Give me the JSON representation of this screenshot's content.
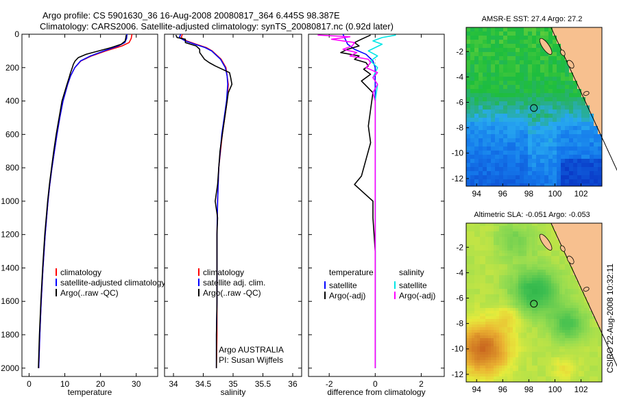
{
  "header": {
    "title_line1": "Argo profile: CS 5901630_36 16-Aug-2008 20080817_364 6.445S 98.387E",
    "title_line2": "Climatology: CARS2006. Satellite-adjusted climatology: synTS_20080817.nc (0.92d later)"
  },
  "footer_stamp": "CSIRO 22-Aug-2008 10:32:11",
  "colors": {
    "climatology": "#ff0000",
    "satellite": "#0000ff",
    "argo": "#000000",
    "sal_satellite": "#00e5e5",
    "sal_argo": "#ff00ff",
    "land": "#f7c08f"
  },
  "chart_data": [
    {
      "type": "line",
      "id": "temperature",
      "xlabel": "temperature",
      "xlim": [
        -2,
        36
      ],
      "xticks": [
        0,
        10,
        20,
        30
      ],
      "ylim": [
        0,
        2050
      ],
      "yticks": [
        0,
        200,
        400,
        600,
        800,
        1000,
        1200,
        1400,
        1600,
        1800,
        2000
      ],
      "y_reversed": true,
      "legend": [
        "climatology",
        "satellite-adjusted climatology",
        "Argo(..raw -QC)"
      ],
      "legend_colors": [
        "#ff0000",
        "#0000ff",
        "#000000"
      ],
      "series": [
        {
          "name": "climatology",
          "color": "#ff0000",
          "y": [
            0,
            25,
            50,
            70,
            100,
            130,
            160,
            200,
            250,
            300,
            400,
            500,
            600,
            700,
            800,
            900,
            1000,
            1200,
            1400,
            1600,
            1800,
            2000
          ],
          "x": [
            28.8,
            28.6,
            28.0,
            26.0,
            21.5,
            17.5,
            14.5,
            12.8,
            11.6,
            10.8,
            9.5,
            8.6,
            7.8,
            7.1,
            6.4,
            5.8,
            5.3,
            4.5,
            3.9,
            3.4,
            3.0,
            2.7
          ]
        },
        {
          "name": "satellite-adjusted climatology",
          "color": "#0000ff",
          "y": [
            0,
            25,
            50,
            70,
            100,
            130,
            160,
            200,
            250,
            300,
            400,
            500,
            600,
            700,
            800,
            900,
            1000,
            1200,
            1400,
            1600,
            1800,
            2000
          ],
          "x": [
            27.4,
            27.3,
            26.8,
            25.0,
            21.0,
            17.2,
            14.4,
            12.8,
            11.6,
            10.8,
            9.5,
            8.6,
            7.8,
            7.1,
            6.4,
            5.8,
            5.3,
            4.5,
            3.9,
            3.4,
            3.0,
            2.7
          ]
        },
        {
          "name": "Argo(..raw -QC)",
          "color": "#000000",
          "y": [
            5,
            20,
            40,
            60,
            80,
            100,
            120,
            140,
            160,
            180,
            200,
            230,
            260,
            300,
            400,
            500,
            600,
            700,
            800,
            900,
            1000,
            1200,
            1400,
            1600,
            1800,
            2000
          ],
          "x": [
            27.2,
            27.1,
            26.9,
            25.8,
            23.0,
            19.5,
            16.0,
            13.8,
            12.9,
            12.4,
            12.1,
            11.6,
            11.2,
            10.6,
            9.2,
            8.4,
            7.6,
            6.9,
            6.3,
            5.7,
            5.2,
            4.4,
            3.8,
            3.3,
            2.9,
            2.6
          ]
        }
      ]
    },
    {
      "type": "line",
      "id": "salinity",
      "xlabel": "salinity",
      "xlim": [
        33.85,
        36.15
      ],
      "xticks": [
        34,
        34.5,
        35,
        35.5,
        36
      ],
      "xtick_labels": [
        "34",
        "34.5",
        "35",
        "35.5",
        "36"
      ],
      "ylim": [
        0,
        2050
      ],
      "y_reversed": true,
      "legend": [
        "climatology",
        "satellite adj. clim.",
        "Argo(..raw -QC)"
      ],
      "legend_colors": [
        "#ff0000",
        "#0000ff",
        "#000000"
      ],
      "annotation": [
        "Argo AUSTRALIA",
        "PI: Susan Wijffels"
      ],
      "series": [
        {
          "name": "climatology",
          "color": "#ff0000",
          "y": [
            0,
            20,
            40,
            60,
            80,
            100,
            150,
            200,
            250,
            300,
            400,
            500,
            600,
            800,
            1000,
            1200,
            1400,
            1600,
            1800,
            2000
          ],
          "x": [
            34.15,
            34.13,
            34.22,
            34.38,
            34.55,
            34.65,
            34.8,
            34.88,
            34.9,
            34.92,
            34.9,
            34.86,
            34.82,
            34.76,
            34.74,
            34.73,
            34.73,
            34.73,
            34.73,
            34.72
          ]
        },
        {
          "name": "satellite adj. clim.",
          "color": "#0000ff",
          "y": [
            0,
            20,
            40,
            60,
            80,
            100,
            150,
            200,
            250,
            300,
            400,
            500,
            600,
            800,
            1000,
            1200,
            1400,
            1600,
            1800,
            2000
          ],
          "x": [
            34.12,
            34.1,
            34.2,
            34.36,
            34.53,
            34.64,
            34.79,
            34.87,
            34.9,
            34.91,
            34.89,
            34.85,
            34.81,
            34.76,
            34.74,
            34.73,
            34.73,
            34.73,
            34.72,
            34.72
          ]
        },
        {
          "name": "Argo(..raw -QC)",
          "color": "#000000",
          "y": [
            5,
            20,
            30,
            50,
            70,
            90,
            110,
            130,
            150,
            170,
            190,
            210,
            230,
            260,
            300,
            350,
            400,
            500,
            600,
            700,
            800,
            900,
            1000,
            1100,
            1200,
            1400,
            1600,
            1800,
            2000
          ],
          "x": [
            34.04,
            34.06,
            34.2,
            34.2,
            34.38,
            34.44,
            34.44,
            34.48,
            34.52,
            34.6,
            34.7,
            34.82,
            34.94,
            34.96,
            34.98,
            34.92,
            34.9,
            34.86,
            34.82,
            34.78,
            34.76,
            34.74,
            34.7,
            34.74,
            34.73,
            34.73,
            34.73,
            34.72,
            34.72
          ]
        }
      ]
    },
    {
      "type": "line",
      "id": "difference",
      "xlabel": "difference from climatology",
      "xlim": [
        -2.9,
        3.0
      ],
      "xticks": [
        -2,
        0,
        2
      ],
      "ylim": [
        0,
        2050
      ],
      "y_reversed": true,
      "legend_temperature_title": "temperature",
      "legend_temperature": [
        "satellite",
        "Argo(-adj)"
      ],
      "legend_temperature_colors": [
        "#0000ff",
        "#000000"
      ],
      "legend_salinity_title": "salinity",
      "legend_salinity": [
        "satellite",
        "Argo(-adj)"
      ],
      "legend_salinity_colors": [
        "#00e5e5",
        "#ff00ff"
      ],
      "series": [
        {
          "name": "temperature satellite",
          "color": "#0000ff",
          "y": [
            0,
            30,
            60,
            90,
            120,
            160,
            200,
            300,
            500,
            800,
            1200,
            2000
          ],
          "x": [
            -1.4,
            -1.3,
            -1.2,
            -0.9,
            -0.4,
            -0.1,
            0.0,
            0.0,
            0.0,
            0.0,
            0.0,
            0.0
          ]
        },
        {
          "name": "temperature Argo(-adj)",
          "color": "#000000",
          "y": [
            5,
            30,
            50,
            70,
            90,
            110,
            130,
            150,
            170,
            190,
            210,
            240,
            280,
            350,
            450,
            550,
            650,
            750,
            850,
            900,
            950,
            1000,
            1100,
            1300,
            1500,
            1700,
            2000
          ],
          "x": [
            -0.2,
            -0.6,
            -0.9,
            -0.7,
            -1.2,
            -1.5,
            -0.7,
            -0.9,
            -0.4,
            -0.3,
            -0.5,
            -0.2,
            -0.6,
            -0.1,
            -0.2,
            -0.3,
            -0.2,
            -0.4,
            -0.6,
            -0.9,
            -0.5,
            -0.1,
            -0.1,
            0.0,
            0.0,
            0.0,
            0.0
          ]
        },
        {
          "name": "salinity satellite",
          "color": "#00e5e5",
          "y": [
            5,
            20,
            40,
            60,
            80,
            100,
            130,
            160,
            200,
            260,
            300,
            400,
            600,
            1000,
            2000
          ],
          "x": [
            0.9,
            0.3,
            -0.1,
            0.3,
            0.0,
            -0.3,
            0.1,
            -0.2,
            0.1,
            -0.1,
            0.1,
            0.0,
            0.0,
            0.0,
            0.0
          ]
        },
        {
          "name": "salinity Argo(-adj)",
          "color": "#ff00ff",
          "y": [
            5,
            15,
            30,
            50,
            70,
            90,
            110,
            130,
            150,
            170,
            200,
            230,
            260,
            300,
            350,
            400,
            500,
            700,
            900,
            1100,
            1400,
            2000
          ],
          "x": [
            -2.5,
            -1.1,
            -1.9,
            -0.9,
            -1.0,
            -1.4,
            -0.8,
            -1.1,
            -0.3,
            -0.2,
            -0.4,
            0.1,
            -0.1,
            0.1,
            -0.1,
            0.0,
            0.0,
            0.0,
            0.0,
            0.0,
            0.0,
            0.0
          ]
        }
      ]
    },
    {
      "type": "heatmap",
      "id": "sst_map",
      "title": "AMSR-E SST: 27.4  Argo: 27.2",
      "xlim": [
        93.2,
        103.6
      ],
      "ylim": [
        -12.6,
        -0.1
      ],
      "xticks": [
        94,
        96,
        98,
        100,
        102
      ],
      "yticks": [
        -2,
        -4,
        -6,
        -8,
        -10,
        -12
      ],
      "marker": {
        "lon": 98.387,
        "lat": -6.445
      }
    },
    {
      "type": "heatmap",
      "id": "sla_map",
      "title": "Altimetric SLA: -0.051  Argo: -0.053",
      "xlim": [
        93.2,
        103.6
      ],
      "ylim": [
        -12.6,
        -0.1
      ],
      "xticks": [
        94,
        96,
        98,
        100,
        102
      ],
      "yticks": [
        -2,
        -4,
        -6,
        -8,
        -10,
        -12
      ],
      "marker": {
        "lon": 98.387,
        "lat": -6.445
      }
    }
  ]
}
